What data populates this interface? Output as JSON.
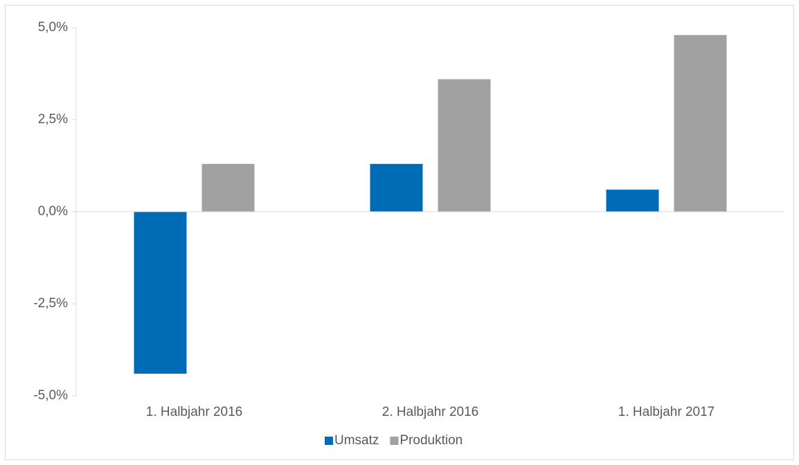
{
  "chart_data": {
    "type": "bar",
    "categories": [
      "1. Halbjahr 2016",
      "2. Halbjahr 2016",
      "1. Halbjahr 2017"
    ],
    "series": [
      {
        "name": "Umsatz",
        "color": "#006cb5",
        "values": [
          -4.4,
          1.3,
          0.6
        ]
      },
      {
        "name": "Produktion",
        "color": "#a1a1a1",
        "values": [
          1.3,
          3.6,
          4.8
        ]
      }
    ],
    "ylim": [
      -5,
      5
    ],
    "yticks": [
      {
        "value": -5,
        "label": "-5,0%"
      },
      {
        "value": -2.5,
        "label": "-2,5%"
      },
      {
        "value": 0,
        "label": "0,0%"
      },
      {
        "value": 2.5,
        "label": "2,5%"
      },
      {
        "value": 5,
        "label": "5,0%"
      }
    ],
    "grid": false,
    "legend": "bottom"
  }
}
